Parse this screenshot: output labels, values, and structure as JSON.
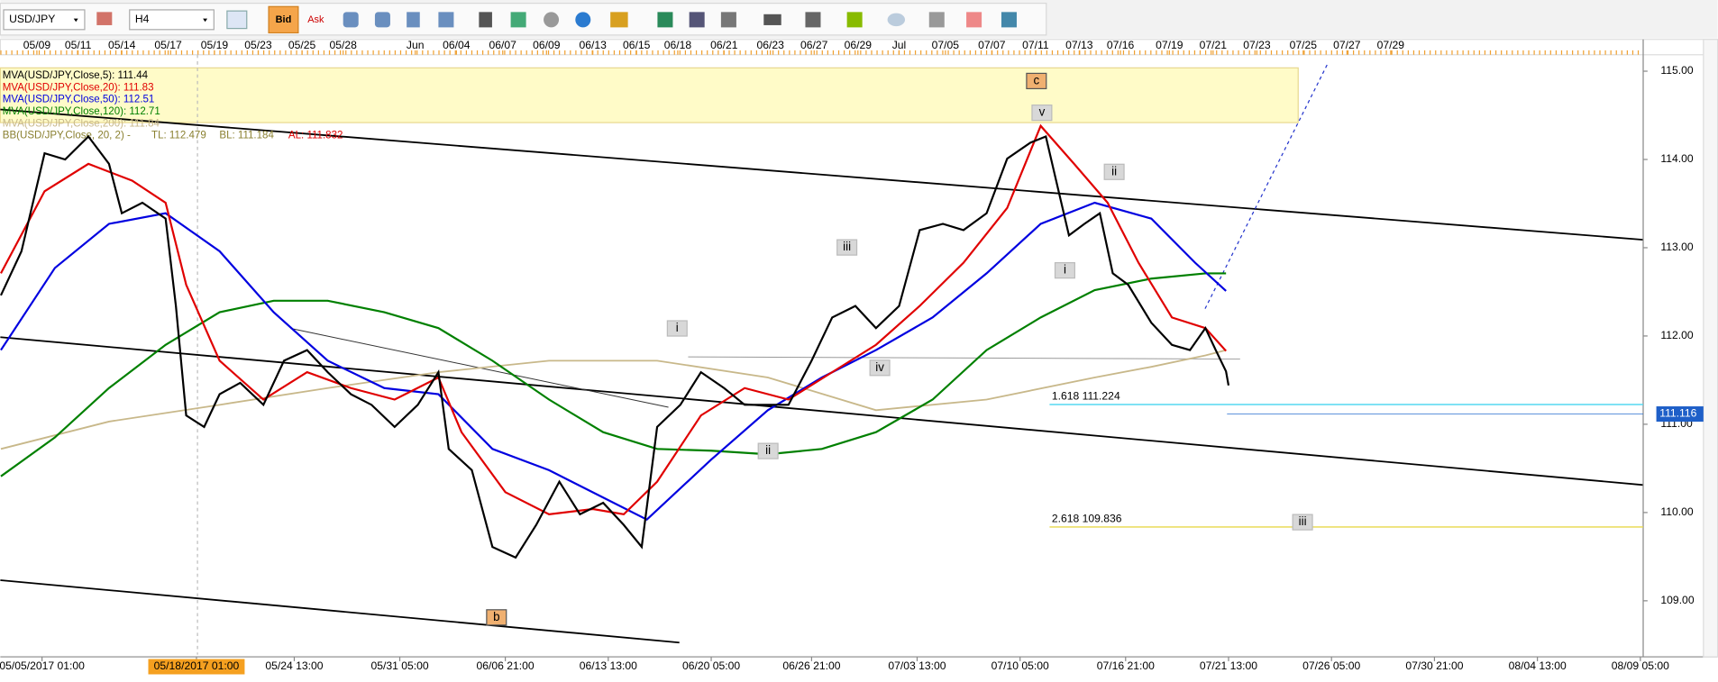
{
  "toolbar": {
    "symbol": "USD/JPY",
    "timeframe": "H4",
    "bid": "Bid",
    "ask": "Ask"
  },
  "chart_data": {
    "type": "line",
    "xlim": [
      -16.2,
      622.1
    ],
    "ylim": [
      108.39,
      115.36
    ],
    "yticks": [
      {
        "value": 109,
        "label": "109.00"
      },
      {
        "value": 110,
        "label": "110.00"
      },
      {
        "value": 111,
        "label": "111.00"
      },
      {
        "value": 112,
        "label": "112.00"
      },
      {
        "value": 113,
        "label": "113.00"
      },
      {
        "value": 114,
        "label": "114.00"
      },
      {
        "value": 115,
        "label": "115.00"
      }
    ],
    "xticks": [
      {
        "value": 0,
        "label": "05/05/2017 01:00"
      },
      {
        "value": 60,
        "label": "05/18/2017 01:00"
      },
      {
        "value": 98,
        "label": "05/24 13:00"
      },
      {
        "value": 139,
        "label": "05/31 05:00"
      },
      {
        "value": 180,
        "label": "06/06 21:00"
      },
      {
        "value": 220,
        "label": "06/13 13:00"
      },
      {
        "value": 260,
        "label": "06/20 05:00"
      },
      {
        "value": 299,
        "label": "06/26 21:00"
      },
      {
        "value": 340,
        "label": "07/03 13:00"
      },
      {
        "value": 380,
        "label": "07/10 05:00"
      },
      {
        "value": 421,
        "label": "07/16 21:00"
      },
      {
        "value": 461,
        "label": "07/21 13:00"
      },
      {
        "value": 501,
        "label": "07/26 05:00"
      },
      {
        "value": 541,
        "label": "07/30 21:00"
      },
      {
        "value": 581,
        "label": "08/04 13:00"
      },
      {
        "value": 621,
        "label": "08/09 05:00"
      }
    ],
    "highlighted_xtick": 1,
    "top_xticks": [
      {
        "value": -2,
        "label": "05/09"
      },
      {
        "value": 14,
        "label": "05/11"
      },
      {
        "value": 31,
        "label": "05/14"
      },
      {
        "value": 49,
        "label": "05/17"
      },
      {
        "value": 67,
        "label": "05/19"
      },
      {
        "value": 84,
        "label": "05/23"
      },
      {
        "value": 101,
        "label": "05/25"
      },
      {
        "value": 117,
        "label": "05/28"
      },
      {
        "value": 145,
        "label": "Jun"
      },
      {
        "value": 161,
        "label": "06/04"
      },
      {
        "value": 179,
        "label": "06/07"
      },
      {
        "value": 196,
        "label": "06/09"
      },
      {
        "value": 214,
        "label": "06/13"
      },
      {
        "value": 231,
        "label": "06/15"
      },
      {
        "value": 247,
        "label": "06/18"
      },
      {
        "value": 265,
        "label": "06/21"
      },
      {
        "value": 283,
        "label": "06/23"
      },
      {
        "value": 300,
        "label": "06/27"
      },
      {
        "value": 317,
        "label": "06/29"
      },
      {
        "value": 333,
        "label": "Jul"
      },
      {
        "value": 351,
        "label": "07/05"
      },
      {
        "value": 369,
        "label": "07/07"
      },
      {
        "value": 386,
        "label": "07/11"
      },
      {
        "value": 403,
        "label": "07/13"
      },
      {
        "value": 419,
        "label": "07/16"
      },
      {
        "value": 438,
        "label": "07/19"
      },
      {
        "value": 455,
        "label": "07/21"
      },
      {
        "value": 472,
        "label": "07/23"
      },
      {
        "value": 490,
        "label": "07/25"
      },
      {
        "value": 507,
        "label": "07/27"
      },
      {
        "value": 524,
        "label": "07/29"
      }
    ],
    "series": [
      {
        "name": "MVA(USD/JPY,Close,5): 111.44",
        "color": "#000000",
        "x": [
          -16,
          -8,
          1,
          9,
          18,
          26,
          31,
          39,
          48,
          52,
          56,
          63,
          69,
          77,
          86,
          94,
          103,
          111,
          120,
          128,
          137,
          146,
          154,
          158,
          167,
          175,
          184,
          192,
          201,
          209,
          218,
          226,
          233,
          239,
          248,
          256,
          265,
          273,
          282,
          290,
          299,
          307,
          316,
          324,
          333,
          341,
          350,
          358,
          367,
          375,
          384,
          390,
          394,
          399,
          405,
          411,
          416,
          422,
          431,
          439,
          446,
          452,
          456,
          460,
          461
        ],
        "values": [
          112.46,
          112.96,
          114.07,
          114.0,
          114.26,
          113.95,
          113.39,
          113.51,
          113.33,
          112.34,
          111.1,
          110.97,
          111.34,
          111.47,
          111.22,
          111.72,
          111.84,
          111.59,
          111.34,
          111.22,
          110.97,
          111.22,
          111.59,
          110.72,
          110.48,
          109.61,
          109.49,
          109.86,
          110.35,
          109.98,
          110.11,
          109.86,
          109.61,
          110.97,
          111.22,
          111.59,
          111.41,
          111.22,
          111.22,
          111.22,
          111.72,
          112.21,
          112.34,
          112.09,
          112.34,
          113.2,
          113.27,
          113.2,
          113.39,
          114.01,
          114.19,
          114.26,
          113.76,
          113.14,
          113.27,
          113.39,
          112.71,
          112.58,
          112.15,
          111.9,
          111.84,
          112.09,
          111.84,
          111.6,
          111.44
        ]
      },
      {
        "name": "MVA(USD/JPY,Close,20): 111.83",
        "color": "#e00000",
        "x": [
          -16,
          1,
          18,
          35,
          48,
          56,
          69,
          86,
          103,
          120,
          137,
          154,
          163,
          180,
          197,
          214,
          226,
          239,
          256,
          273,
          290,
          307,
          324,
          341,
          358,
          375,
          388,
          401,
          414,
          426,
          439,
          452,
          460
        ],
        "values": [
          112.71,
          113.64,
          113.95,
          113.76,
          113.51,
          112.58,
          111.72,
          111.28,
          111.59,
          111.41,
          111.28,
          111.53,
          110.91,
          110.23,
          109.98,
          110.04,
          109.98,
          110.35,
          111.1,
          111.41,
          111.28,
          111.59,
          111.9,
          112.34,
          112.83,
          113.45,
          114.38,
          113.95,
          113.51,
          112.83,
          112.21,
          112.09,
          111.83
        ]
      },
      {
        "name": "MVA(USD/JPY,Close,50): 112.51",
        "color": "#0000e0",
        "x": [
          -16,
          5,
          26,
          48,
          69,
          90,
          111,
          133,
          154,
          175,
          197,
          218,
          235,
          260,
          282,
          303,
          324,
          346,
          367,
          388,
          409,
          431,
          448,
          460
        ],
        "values": [
          111.84,
          112.77,
          113.27,
          113.39,
          112.96,
          112.27,
          111.72,
          111.41,
          111.34,
          110.72,
          110.48,
          110.17,
          109.92,
          110.6,
          111.16,
          111.53,
          111.84,
          112.21,
          112.71,
          113.27,
          113.51,
          113.33,
          112.83,
          112.51
        ]
      },
      {
        "name": "MVA(USD/JPY,Close,120): 112.71",
        "color": "#008000",
        "x": [
          -16,
          5,
          26,
          48,
          69,
          90,
          111,
          133,
          154,
          175,
          197,
          218,
          239,
          260,
          282,
          303,
          324,
          346,
          367,
          388,
          409,
          431,
          452,
          460
        ],
        "values": [
          110.41,
          110.85,
          111.41,
          111.9,
          112.27,
          112.4,
          112.4,
          112.27,
          112.09,
          111.72,
          111.28,
          110.91,
          110.72,
          110.7,
          110.66,
          110.72,
          110.91,
          111.28,
          111.84,
          112.21,
          112.52,
          112.65,
          112.71,
          112.71
        ]
      },
      {
        "name": "MVA(USD/JPY,Close,200): 111.84",
        "color": "#c8b88a",
        "x": [
          -16,
          26,
          69,
          111,
          154,
          197,
          239,
          282,
          324,
          367,
          409,
          431,
          452,
          460
        ],
        "values": [
          110.72,
          111.03,
          111.22,
          111.41,
          111.59,
          111.72,
          111.72,
          111.53,
          111.16,
          111.28,
          111.53,
          111.65,
          111.78,
          111.84
        ]
      }
    ],
    "bollinger": {
      "name": "BB(USD/JPY,Close, 20, 2) -",
      "tl": "TL: 112.479",
      "bl": "BL: 111.184",
      "al": "AL: 111.832"
    },
    "fib_levels": [
      {
        "label": "1.618 111.224",
        "value": 111.224,
        "color": "#55d8f0"
      },
      {
        "label": "2.618 109.836",
        "value": 109.836,
        "color": "#e8d84a"
      }
    ],
    "last_price": 111.116,
    "wave_labels": [
      "c",
      "v",
      "ii",
      "iii",
      "i",
      "i",
      "iv",
      "ii",
      "b",
      "iii"
    ]
  }
}
